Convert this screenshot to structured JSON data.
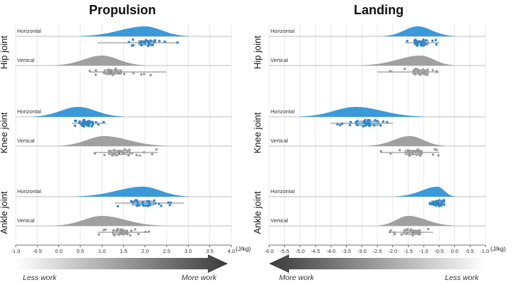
{
  "chart_data": [
    {
      "type": "raincloud",
      "title": "Propulsion",
      "xlim": [
        -1.0,
        4.0
      ],
      "xticks": [
        "-1.0",
        "-0.5",
        "0.0",
        "0.5",
        "1.0",
        "1.5",
        "2.0",
        "2.5",
        "3.0",
        "3.5",
        "4.0"
      ],
      "unit": "(J/kg)",
      "arrow": {
        "direction": "right",
        "low_label": "Less work",
        "high_label": "More work"
      },
      "groups": [
        {
          "name": "Hip joint",
          "rows": [
            {
              "label": "Horizontal",
              "color": "#3a9ad9",
              "peak": 2.0,
              "kde_range": [
                0.5,
                3.0
              ],
              "skew": "left",
              "q1": 1.85,
              "median": 2.0,
              "q3": 2.2,
              "whisker": [
                0.9,
                2.8
              ]
            },
            {
              "label": "Vertical",
              "color": "#a0a0a0",
              "peak": 1.0,
              "kde_range": [
                -0.1,
                2.0
              ],
              "skew": "right",
              "q1": 1.05,
              "median": 1.2,
              "q3": 1.45,
              "whisker": [
                0.7,
                2.5
              ]
            }
          ]
        },
        {
          "name": "Knee joint",
          "rows": [
            {
              "label": "Horizontal",
              "color": "#3a9ad9",
              "peak": 0.45,
              "kde_range": [
                -0.6,
                1.5
              ],
              "skew": "right",
              "q1": 0.5,
              "median": 0.65,
              "q3": 0.8,
              "whisker": [
                0.3,
                1.1
              ]
            },
            {
              "label": "Vertical",
              "color": "#a0a0a0",
              "peak": 1.05,
              "kde_range": [
                0.0,
                2.5
              ],
              "skew": "right",
              "q1": 1.15,
              "median": 1.4,
              "q3": 1.65,
              "whisker": [
                0.8,
                2.3
              ]
            }
          ]
        },
        {
          "name": "Ankle joint",
          "rows": [
            {
              "label": "Horizontal",
              "color": "#3a9ad9",
              "peak": 1.95,
              "kde_range": [
                0.4,
                3.0
              ],
              "skew": "left",
              "q1": 1.7,
              "median": 1.95,
              "q3": 2.2,
              "whisker": [
                1.3,
                2.9
              ]
            },
            {
              "label": "Vertical",
              "color": "#a0a0a0",
              "peak": 1.0,
              "kde_range": [
                -0.1,
                2.4
              ],
              "skew": "right",
              "q1": 1.25,
              "median": 1.45,
              "q3": 1.6,
              "whisker": [
                0.9,
                2.1
              ]
            }
          ]
        }
      ]
    },
    {
      "type": "raincloud",
      "title": "Landing",
      "xlim": [
        -6.0,
        1.0
      ],
      "xticks": [
        "-6.0",
        "-5.5",
        "-5.0",
        "-4.5",
        "-4.0",
        "-3.5",
        "-3.0",
        "-2.5",
        "-2.0",
        "-1.5",
        "-1.0",
        "-0.5",
        "0.0",
        "0.5",
        "1.0"
      ],
      "unit": "(J/kg)",
      "arrow": {
        "direction": "left",
        "high_label": "More work",
        "low_label": "Less work"
      },
      "groups": [
        {
          "name": "Hip joint",
          "rows": [
            {
              "label": "Horizontal",
              "color": "#3a9ad9",
              "peak": -1.2,
              "kde_range": [
                -2.3,
                0.0
              ],
              "skew": "none",
              "q1": -1.3,
              "median": -1.05,
              "q3": -0.85,
              "whisker": [
                -1.6,
                -0.5
              ]
            },
            {
              "label": "Vertical",
              "color": "#a0a0a0",
              "peak": -1.1,
              "kde_range": [
                -3.0,
                0.0
              ],
              "skew": "left",
              "q1": -1.35,
              "median": -1.15,
              "q3": -0.85,
              "whisker": [
                -2.5,
                -0.5
              ]
            }
          ]
        },
        {
          "name": "Knee joint",
          "rows": [
            {
              "label": "Horizontal",
              "color": "#3a9ad9",
              "peak": -3.2,
              "kde_range": [
                -5.0,
                -1.0
              ],
              "skew": "none",
              "q1": -3.2,
              "median": -2.8,
              "q3": -2.45,
              "whisker": [
                -4.0,
                -2.0
              ]
            },
            {
              "label": "Vertical",
              "color": "#a0a0a0",
              "peak": -1.45,
              "kde_range": [
                -2.8,
                -0.3
              ],
              "skew": "none",
              "q1": -1.6,
              "median": -1.35,
              "q3": -1.05,
              "whisker": [
                -2.4,
                -0.5
              ]
            }
          ]
        },
        {
          "name": "Ankle joint",
          "rows": [
            {
              "label": "Horizontal",
              "color": "#3a9ad9",
              "peak": -0.55,
              "kde_range": [
                -1.9,
                0.0
              ],
              "skew": "left",
              "q1": -0.75,
              "median": -0.55,
              "q3": -0.4,
              "whisker": [
                -0.85,
                -0.3
              ]
            },
            {
              "label": "Vertical",
              "color": "#a0a0a0",
              "peak": -1.5,
              "kde_range": [
                -2.5,
                0.0
              ],
              "skew": "none",
              "q1": -1.65,
              "median": -1.35,
              "q3": -1.1,
              "whisker": [
                -2.1,
                -0.7
              ]
            }
          ]
        }
      ]
    }
  ]
}
